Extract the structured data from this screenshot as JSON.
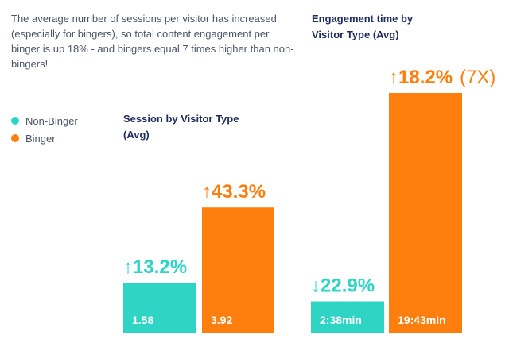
{
  "description": "The average number of sessions per visitor has increased (especially for bingers), so total content engagement per binger is up 18% - and bingers equal 7 times higher than non-bingers!",
  "colors": {
    "non_binger": "#2ed4c4",
    "binger": "#ff7f0e",
    "text": "#4a5568",
    "title": "#1f2d5c"
  },
  "legend": [
    {
      "label": "Non-Binger",
      "color": "#2ed4c4"
    },
    {
      "label": "Binger",
      "color": "#ff7f0e"
    }
  ],
  "chart_data": [
    {
      "type": "bar",
      "title": "Session by Visitor Type (Avg)",
      "categories": [
        "Non-Binger",
        "Binger"
      ],
      "values": [
        1.58,
        3.92
      ],
      "value_labels": [
        "1.58",
        "3.92"
      ],
      "changes": [
        "↑13.2%",
        "↑43.3%"
      ],
      "notes": [
        "",
        ""
      ],
      "colors": [
        "#2ed4c4",
        "#ff7f0e"
      ],
      "ylim": [
        0,
        4
      ]
    },
    {
      "type": "bar",
      "title": "Engagement time by Visitor Type (Avg)",
      "categories": [
        "Non-Binger",
        "Binger"
      ],
      "values": [
        2.633,
        19.717
      ],
      "value_labels": [
        "2:38min",
        "19:43min"
      ],
      "changes": [
        "↓22.9%",
        "↑18.2%"
      ],
      "notes": [
        "",
        "(7X)"
      ],
      "colors": [
        "#2ed4c4",
        "#ff7f0e"
      ],
      "ylim": [
        0,
        19.717
      ]
    }
  ]
}
